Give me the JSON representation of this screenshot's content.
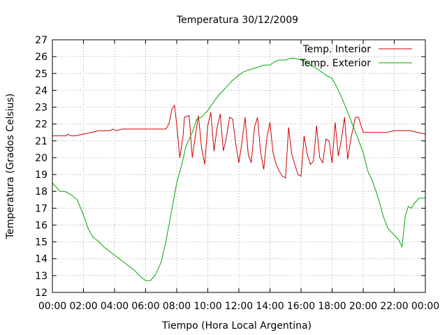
{
  "chart_data": {
    "type": "line",
    "title": "Temperatura 30/12/2009",
    "xlabel": "Tiempo (Hora Local Argentina)",
    "ylabel": "Temperatura (Grados Celsius)",
    "xlim": [
      0,
      24
    ],
    "ylim": [
      12,
      27
    ],
    "x_tick_labels": [
      "00:00",
      "02:00",
      "04:00",
      "06:00",
      "08:00",
      "10:00",
      "12:00",
      "14:00",
      "16:00",
      "18:00",
      "20:00",
      "22:00",
      "00:00"
    ],
    "y_tick_labels": [
      "12",
      "13",
      "14",
      "15",
      "16",
      "17",
      "18",
      "19",
      "20",
      "21",
      "22",
      "23",
      "24",
      "25",
      "26",
      "27"
    ],
    "grid": true,
    "legend_position": "top-right",
    "series": [
      {
        "name": "Temp. Interior",
        "color": "#cc0000",
        "x": [
          0,
          0.3,
          0.6,
          0.9,
          1.0,
          1.2,
          1.5,
          2.0,
          2.5,
          3.0,
          3.5,
          3.7,
          3.9,
          4.1,
          4.5,
          5.0,
          5.5,
          6.0,
          6.5,
          7.0,
          7.3,
          7.5,
          7.7,
          7.85,
          8.0,
          8.2,
          8.4,
          8.5,
          8.8,
          9.0,
          9.2,
          9.4,
          9.6,
          9.8,
          10.0,
          10.2,
          10.4,
          10.6,
          10.8,
          11.0,
          11.2,
          11.4,
          11.6,
          11.8,
          12.0,
          12.2,
          12.4,
          12.6,
          12.8,
          13.0,
          13.2,
          13.4,
          13.6,
          13.8,
          14.0,
          14.2,
          14.4,
          14.6,
          14.8,
          15.0,
          15.2,
          15.4,
          15.6,
          15.8,
          16.0,
          16.2,
          16.4,
          16.6,
          16.8,
          17.0,
          17.2,
          17.4,
          17.6,
          17.8,
          18.0,
          18.2,
          18.4,
          18.6,
          18.8,
          19.0,
          19.2,
          19.5,
          19.7,
          20.0,
          20.5,
          21.0,
          21.5,
          22.0,
          22.5,
          23.0,
          23.5,
          24.0
        ],
        "y": [
          21.3,
          21.3,
          21.3,
          21.3,
          21.4,
          21.3,
          21.3,
          21.4,
          21.5,
          21.6,
          21.6,
          21.6,
          21.7,
          21.6,
          21.7,
          21.7,
          21.7,
          21.7,
          21.7,
          21.7,
          21.7,
          22.0,
          22.9,
          23.1,
          22.0,
          20.0,
          21.2,
          22.4,
          22.5,
          20.0,
          21.3,
          22.5,
          20.6,
          19.6,
          21.9,
          22.7,
          20.4,
          21.8,
          22.6,
          20.4,
          21.2,
          22.4,
          22.3,
          20.8,
          19.7,
          20.9,
          22.4,
          20.2,
          19.7,
          21.8,
          22.4,
          20.3,
          19.3,
          21.2,
          22.1,
          20.3,
          19.6,
          19.2,
          18.9,
          18.8,
          21.8,
          20.2,
          19.6,
          19.0,
          18.9,
          21.3,
          20.2,
          19.6,
          19.8,
          21.9,
          20.0,
          19.7,
          21.1,
          21.0,
          19.7,
          22.1,
          20.1,
          21.1,
          22.4,
          19.9,
          21.1,
          22.4,
          22.4,
          21.5,
          21.5,
          21.5,
          21.5,
          21.6,
          21.6,
          21.6,
          21.5,
          21.4
        ]
      },
      {
        "name": "Temp. Exterior",
        "color": "#00aa00",
        "x": [
          0,
          0.2,
          0.5,
          0.8,
          1.2,
          1.6,
          2.0,
          2.3,
          2.6,
          3.0,
          3.3,
          3.6,
          4.0,
          4.3,
          4.6,
          5.0,
          5.3,
          5.6,
          6.0,
          6.3,
          6.6,
          7.0,
          7.3,
          7.6,
          8.0,
          8.3,
          8.6,
          9.0,
          9.3,
          9.6,
          10.0,
          10.3,
          10.6,
          11.0,
          11.3,
          11.6,
          12.0,
          12.3,
          12.6,
          13.0,
          13.3,
          13.6,
          14.0,
          14.3,
          14.6,
          15.0,
          15.3,
          15.6,
          16.0,
          16.3,
          16.6,
          17.0,
          17.3,
          17.6,
          18.0,
          18.3,
          18.6,
          19.0,
          19.3,
          19.6,
          20.0,
          20.3,
          20.6,
          21.0,
          21.3,
          21.6,
          22.0,
          22.3,
          22.5,
          22.7,
          22.9,
          23.1,
          23.3,
          23.6,
          24.0
        ],
        "y": [
          18.5,
          18.3,
          18.0,
          18.0,
          17.8,
          17.5,
          16.6,
          15.8,
          15.3,
          15.0,
          14.7,
          14.5,
          14.2,
          14.0,
          13.8,
          13.5,
          13.3,
          13.0,
          12.7,
          12.7,
          13.0,
          13.8,
          15.0,
          16.5,
          18.5,
          19.5,
          20.7,
          21.5,
          22.3,
          22.4,
          22.8,
          23.2,
          23.6,
          24.0,
          24.3,
          24.6,
          24.9,
          25.1,
          25.2,
          25.3,
          25.4,
          25.5,
          25.5,
          25.7,
          25.8,
          25.8,
          25.9,
          25.9,
          25.8,
          25.7,
          25.5,
          25.3,
          25.1,
          24.9,
          24.7,
          24.2,
          23.6,
          22.7,
          22.0,
          21.3,
          20.3,
          19.2,
          18.6,
          17.5,
          16.5,
          15.8,
          15.4,
          15.1,
          14.7,
          16.5,
          17.1,
          17.0,
          17.3,
          17.6,
          17.6
        ]
      }
    ]
  }
}
